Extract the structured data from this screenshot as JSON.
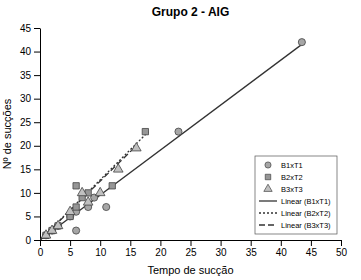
{
  "chart_data": {
    "type": "scatter",
    "title": "Grupo 2 - AIG",
    "x_label": "Tempo de sucção",
    "y_label": "Nº de sucções",
    "xlim": [
      0,
      50
    ],
    "xticks": [
      0,
      5,
      10,
      15,
      20,
      25,
      30,
      35,
      40,
      45,
      50
    ],
    "ylim": [
      0,
      45
    ],
    "yticks": [
      0,
      5,
      10,
      15,
      20,
      25,
      30,
      35,
      40,
      45
    ],
    "legend": "lower right",
    "series": [
      {
        "name": "B1xT1",
        "type": "scatter",
        "marker": "circle",
        "color": "#a6a6a6",
        "x": [
          1,
          2,
          3,
          5,
          6,
          6,
          8,
          9,
          11,
          23,
          43.5
        ],
        "values": [
          1,
          2,
          3,
          5,
          2,
          6,
          7,
          9,
          7,
          23,
          42
        ]
      },
      {
        "name": "B2xT2",
        "type": "scatter",
        "marker": "square",
        "color": "#969696",
        "x": [
          1,
          2,
          3,
          5,
          6,
          6,
          7,
          8,
          12,
          17.5
        ],
        "values": [
          1,
          2,
          3,
          5,
          11.5,
          7,
          9,
          10,
          11.5,
          23
        ]
      },
      {
        "name": "B3xT3",
        "type": "scatter",
        "marker": "triangle",
        "color": "#c0c0c0",
        "x": [
          1,
          2,
          3,
          5,
          7,
          8,
          10,
          13,
          16
        ],
        "values": [
          1,
          2,
          3,
          6,
          10,
          8,
          10,
          15,
          19.5
        ]
      },
      {
        "name": "Linear (B1xT1)",
        "type": "line",
        "line_style": "solid",
        "color": "#333333",
        "x": [
          0,
          44
        ],
        "values": [
          0,
          42
        ]
      },
      {
        "name": "Linear (B2xT2)",
        "type": "line",
        "line_style": "dotted",
        "color": "#333333",
        "x": [
          0,
          18
        ],
        "values": [
          0,
          23
        ]
      },
      {
        "name": "Linear (B3xT3)",
        "type": "line",
        "line_style": "dashed",
        "color": "#333333",
        "x": [
          0,
          16
        ],
        "values": [
          0,
          20
        ]
      }
    ]
  }
}
